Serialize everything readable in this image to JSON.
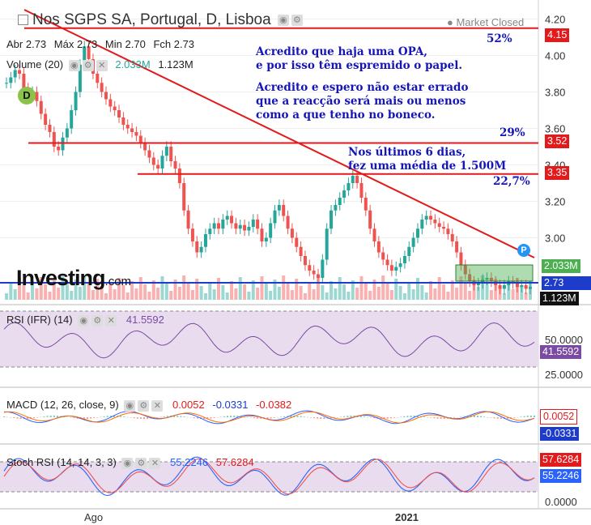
{
  "header": {
    "title": "Nos SGPS SA, Portugal, D, Lisboa",
    "market_status": "Market Closed",
    "ohlc": {
      "open_label": "Abr",
      "open": "2.73",
      "high_label": "Máx",
      "high": "2.73",
      "low_label": "Min",
      "low": "2.70",
      "close_label": "Fch",
      "close": "2.73"
    },
    "volume_label": "Volume (20)",
    "volume_value": "2.033M",
    "volume_ma": "1.123M",
    "badge": "D"
  },
  "annotations": {
    "note1_line1": "Acredito que haja uma OPA,",
    "note1_line2": "e por isso têm espremido o papel.",
    "note2_line1": "Acredito e espero não estar errado",
    "note2_line2": "que a reacção será mais ou menos",
    "note2_line3": "como a que tenho no boneco.",
    "note3_line1": "Nos últimos 6 dias,",
    "note3_line2": "fez uma média de 1.500M",
    "pct1": "52%",
    "pct2": "29%",
    "pct3": "22,7%",
    "p_badge": "P"
  },
  "logo": {
    "main": "Investing",
    "suffix": ".com"
  },
  "price_tags": {
    "l1": "4.15",
    "l2": "3.52",
    "l3": "3.35",
    "vol": "2.033M",
    "last": "2.73",
    "vma": "1.123M"
  },
  "panes": {
    "rsi": {
      "label": "RSI (IFR) (14)",
      "value": "41.5592",
      "tag": "41.5592",
      "ticks": [
        "50.0000",
        "25.0000"
      ]
    },
    "macd": {
      "label": "MACD (12, 26, close, 9)",
      "v1": "0.0052",
      "v2": "-0.0331",
      "v3": "-0.0382",
      "tag1": "0.0052",
      "tag2": "-0.0331"
    },
    "stoch": {
      "label": "Stoch RSI (14, 14, 3, 3)",
      "k": "55.2246",
      "d": "57.6284",
      "tag_d": "57.6284",
      "tag_k": "55.2246",
      "ticks": [
        "0.0000"
      ]
    }
  },
  "colors": {
    "up": "#26a69a",
    "down": "#ef5350",
    "accent_blue": "#1515b8",
    "line_red": "#e31a1c",
    "volume_tag": "#4caf50",
    "last_tag": "#1d3ccc"
  },
  "chart_data": {
    "type": "candlestick",
    "y_ticks": [
      "4.20",
      "4.00",
      "3.80",
      "3.60",
      "3.40",
      "3.20",
      "3.00"
    ],
    "ylim": [
      2.66,
      4.26
    ],
    "x_ticks": [
      "Ago",
      "2021"
    ],
    "horizontal_lines": [
      4.15,
      3.52,
      3.35
    ],
    "trendline": [
      [
        0,
        4.26
      ],
      [
        135,
        2.85
      ]
    ],
    "close_path": [
      3.85,
      3.88,
      3.92,
      3.9,
      3.82,
      3.78,
      3.8,
      3.75,
      3.68,
      3.62,
      3.58,
      3.5,
      3.48,
      3.55,
      3.6,
      3.7,
      3.8,
      3.95,
      4.05,
      3.98,
      3.9,
      3.85,
      3.8,
      3.76,
      3.72,
      3.7,
      3.66,
      3.62,
      3.6,
      3.58,
      3.56,
      3.52,
      3.48,
      3.44,
      3.4,
      3.38,
      3.45,
      3.5,
      3.42,
      3.38,
      3.3,
      3.15,
      3.05,
      2.98,
      2.92,
      2.95,
      3.02,
      3.05,
      3.08,
      3.05,
      3.1,
      3.12,
      3.08,
      3.05,
      3.07,
      3.04,
      3.06,
      3.1,
      3.05,
      2.98,
      3.0,
      3.08,
      3.15,
      3.18,
      3.12,
      3.05,
      3.0,
      2.95,
      2.9,
      2.85,
      2.82,
      2.8,
      2.78,
      2.88,
      3.05,
      3.15,
      3.18,
      3.22,
      3.26,
      3.3,
      3.34,
      3.3,
      3.22,
      3.15,
      3.05,
      2.98,
      2.92,
      2.88,
      2.85,
      2.82,
      2.84,
      2.86,
      2.9,
      2.95,
      3.0,
      3.05,
      3.1,
      3.12,
      3.1,
      3.08,
      3.06,
      3.05,
      3.02,
      2.98,
      2.92,
      2.85,
      2.8,
      2.76,
      2.74,
      2.75,
      2.77,
      2.78,
      2.76,
      2.74,
      2.72,
      2.74,
      2.76,
      2.75,
      2.73,
      2.74,
      2.72,
      2.73
    ]
  }
}
